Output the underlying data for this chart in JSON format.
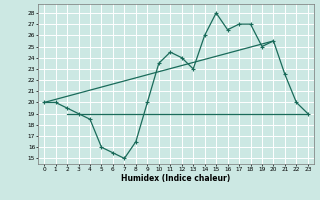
{
  "xlabel": "Humidex (Indice chaleur)",
  "bg_color": "#cce8e3",
  "line_color": "#1a6b5a",
  "xlim": [
    -0.5,
    23.5
  ],
  "ylim": [
    14.5,
    28.8
  ],
  "yticks": [
    15,
    16,
    17,
    18,
    19,
    20,
    21,
    22,
    23,
    24,
    25,
    26,
    27,
    28
  ],
  "xticks": [
    0,
    1,
    2,
    3,
    4,
    5,
    6,
    7,
    8,
    9,
    10,
    11,
    12,
    13,
    14,
    15,
    16,
    17,
    18,
    19,
    20,
    21,
    22,
    23
  ],
  "series1_x": [
    0,
    1,
    2,
    3,
    4,
    5,
    6,
    7,
    8,
    9,
    10,
    11,
    12,
    13,
    14,
    15,
    16,
    17,
    18,
    19,
    20,
    21,
    22,
    23
  ],
  "series1_y": [
    20.0,
    20.0,
    19.5,
    19.0,
    18.5,
    16.0,
    15.5,
    15.0,
    16.5,
    20.0,
    23.5,
    24.5,
    24.0,
    23.0,
    26.0,
    28.0,
    26.5,
    27.0,
    27.0,
    25.0,
    25.5,
    22.5,
    20.0,
    19.0
  ],
  "series2_x": [
    2,
    9,
    19,
    23
  ],
  "series2_y": [
    19.0,
    19.0,
    19.0,
    19.0
  ],
  "series3_x": [
    0,
    20
  ],
  "series3_y": [
    20.0,
    25.5
  ]
}
